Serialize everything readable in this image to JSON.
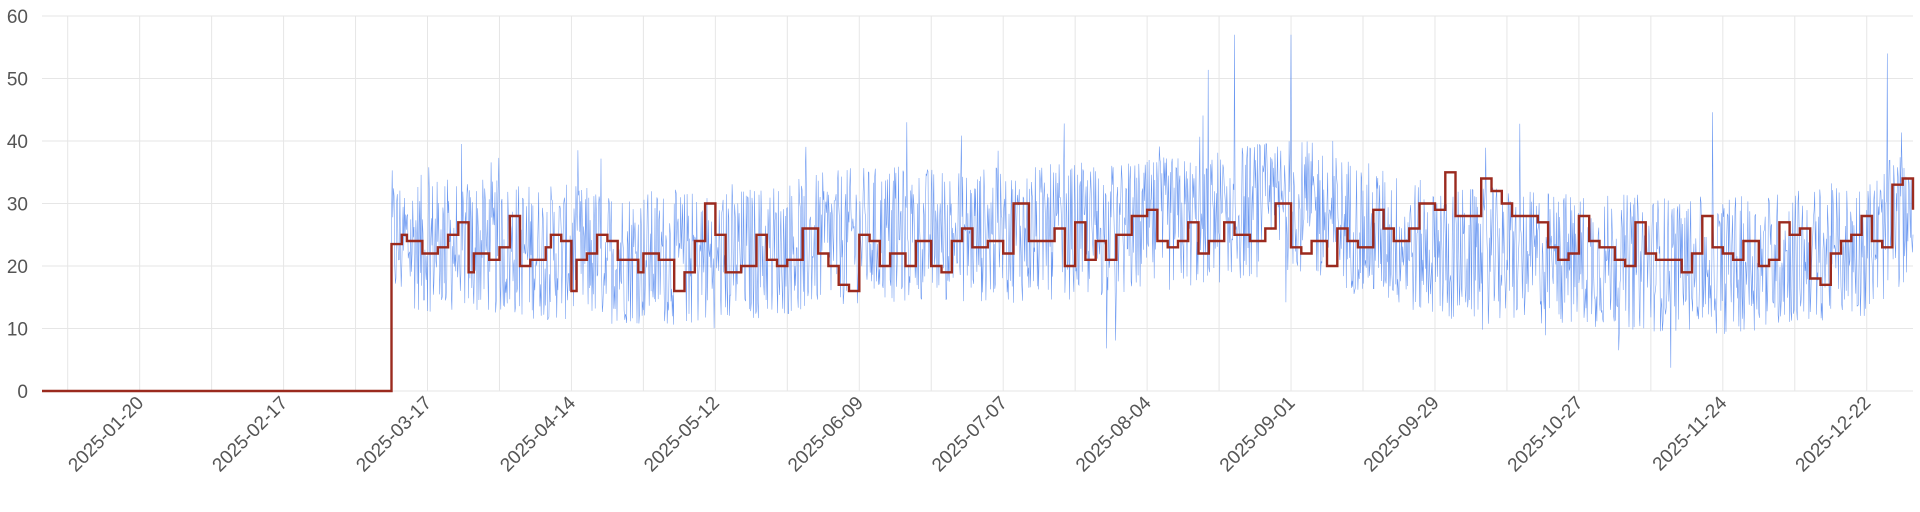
{
  "chart_data": {
    "type": "line",
    "title": "",
    "xlabel": "",
    "ylabel": "",
    "x_range": [
      "2025-01-01",
      "2025-12-31"
    ],
    "ylim": [
      0,
      60
    ],
    "y_ticks": [
      0,
      10,
      20,
      30,
      40,
      50,
      60
    ],
    "x_ticks": [
      "2025-01-20",
      "2025-02-17",
      "2025-03-17",
      "2025-04-14",
      "2025-05-12",
      "2025-06-09",
      "2025-07-07",
      "2025-08-04",
      "2025-09-01",
      "2025-09-29",
      "2025-10-27",
      "2025-11-24",
      "2025-12-22"
    ],
    "grid": true,
    "legend": "none",
    "series": [
      {
        "color": "#5b8def",
        "style": "thin line",
        "description": "high-frequency values; about 0 from 2025-01-01 to 2025-03-10, then noisy between about 0 and 57",
        "start": "2025-01-01",
        "nonzero_from": "2025-03-10",
        "approx_points": [
          [
            "2025-03-10",
            24
          ],
          [
            "2025-04-14",
            22
          ],
          [
            "2025-05-12",
            21
          ],
          [
            "2025-06-09",
            25
          ],
          [
            "2025-07-07",
            25
          ],
          [
            "2025-08-04",
            26
          ],
          [
            "2025-09-01",
            30
          ],
          [
            "2025-09-29",
            22
          ],
          [
            "2025-10-27",
            21
          ],
          [
            "2025-11-24",
            20
          ],
          [
            "2025-12-22",
            23
          ],
          [
            "2025-12-31",
            29
          ]
        ],
        "peaks": [
          [
            "2025-08-21",
            57
          ],
          [
            "2025-09-01",
            57
          ],
          [
            "2025-12-26",
            54
          ]
        ]
      },
      {
        "color": "#9b2a1e",
        "style": "step line",
        "points": [
          [
            "2025-01-01",
            0
          ],
          [
            "2025-03-10",
            0
          ],
          [
            "2025-03-10",
            23.5
          ],
          [
            "2025-03-12",
            25
          ],
          [
            "2025-03-13",
            24
          ],
          [
            "2025-03-16",
            22
          ],
          [
            "2025-03-19",
            23
          ],
          [
            "2025-03-21",
            25
          ],
          [
            "2025-03-23",
            27
          ],
          [
            "2025-03-25",
            19
          ],
          [
            "2025-03-26",
            22
          ],
          [
            "2025-03-29",
            21
          ],
          [
            "2025-03-31",
            23
          ],
          [
            "2025-04-02",
            28
          ],
          [
            "2025-04-04",
            20
          ],
          [
            "2025-04-06",
            21
          ],
          [
            "2025-04-09",
            23
          ],
          [
            "2025-04-10",
            25
          ],
          [
            "2025-04-12",
            24
          ],
          [
            "2025-04-14",
            16
          ],
          [
            "2025-04-15",
            21
          ],
          [
            "2025-04-17",
            22
          ],
          [
            "2025-04-19",
            25
          ],
          [
            "2025-04-21",
            24
          ],
          [
            "2025-04-23",
            21
          ],
          [
            "2025-04-25",
            21
          ],
          [
            "2025-04-27",
            19
          ],
          [
            "2025-04-28",
            22
          ],
          [
            "2025-05-01",
            21
          ],
          [
            "2025-05-04",
            16
          ],
          [
            "2025-05-06",
            19
          ],
          [
            "2025-05-08",
            24
          ],
          [
            "2025-05-10",
            30
          ],
          [
            "2025-05-12",
            25
          ],
          [
            "2025-05-14",
            19
          ],
          [
            "2025-05-17",
            20
          ],
          [
            "2025-05-20",
            25
          ],
          [
            "2025-05-22",
            21
          ],
          [
            "2025-05-24",
            20
          ],
          [
            "2025-05-26",
            21
          ],
          [
            "2025-05-29",
            26
          ],
          [
            "2025-06-01",
            22
          ],
          [
            "2025-06-03",
            20
          ],
          [
            "2025-06-05",
            17
          ],
          [
            "2025-06-07",
            16
          ],
          [
            "2025-06-09",
            25
          ],
          [
            "2025-06-11",
            24
          ],
          [
            "2025-06-13",
            20
          ],
          [
            "2025-06-15",
            22
          ],
          [
            "2025-06-18",
            20
          ],
          [
            "2025-06-20",
            24
          ],
          [
            "2025-06-23",
            20
          ],
          [
            "2025-06-25",
            19
          ],
          [
            "2025-06-27",
            24
          ],
          [
            "2025-06-29",
            26
          ],
          [
            "2025-07-01",
            23
          ],
          [
            "2025-07-04",
            24
          ],
          [
            "2025-07-07",
            22
          ],
          [
            "2025-07-09",
            30
          ],
          [
            "2025-07-12",
            24
          ],
          [
            "2025-07-14",
            24
          ],
          [
            "2025-07-17",
            26
          ],
          [
            "2025-07-19",
            20
          ],
          [
            "2025-07-21",
            27
          ],
          [
            "2025-07-23",
            21
          ],
          [
            "2025-07-25",
            24
          ],
          [
            "2025-07-27",
            21
          ],
          [
            "2025-07-29",
            25
          ],
          [
            "2025-08-01",
            28
          ],
          [
            "2025-08-04",
            29
          ],
          [
            "2025-08-06",
            24
          ],
          [
            "2025-08-08",
            23
          ],
          [
            "2025-08-10",
            24
          ],
          [
            "2025-08-12",
            27
          ],
          [
            "2025-08-14",
            22
          ],
          [
            "2025-08-16",
            24
          ],
          [
            "2025-08-19",
            27
          ],
          [
            "2025-08-21",
            25
          ],
          [
            "2025-08-24",
            24
          ],
          [
            "2025-08-27",
            26
          ],
          [
            "2025-08-29",
            30
          ],
          [
            "2025-09-01",
            23
          ],
          [
            "2025-09-03",
            22
          ],
          [
            "2025-09-05",
            24
          ],
          [
            "2025-09-08",
            20
          ],
          [
            "2025-09-10",
            26
          ],
          [
            "2025-09-12",
            24
          ],
          [
            "2025-09-14",
            23
          ],
          [
            "2025-09-17",
            29
          ],
          [
            "2025-09-19",
            26
          ],
          [
            "2025-09-21",
            24
          ],
          [
            "2025-09-24",
            26
          ],
          [
            "2025-09-26",
            30
          ],
          [
            "2025-09-29",
            29
          ],
          [
            "2025-10-01",
            35
          ],
          [
            "2025-10-03",
            28
          ],
          [
            "2025-10-05",
            28
          ],
          [
            "2025-10-08",
            34
          ],
          [
            "2025-10-10",
            32
          ],
          [
            "2025-10-12",
            30
          ],
          [
            "2025-10-14",
            28
          ],
          [
            "2025-10-16",
            28
          ],
          [
            "2025-10-19",
            27
          ],
          [
            "2025-10-21",
            23
          ],
          [
            "2025-10-23",
            21
          ],
          [
            "2025-10-25",
            22
          ],
          [
            "2025-10-27",
            28
          ],
          [
            "2025-10-29",
            24
          ],
          [
            "2025-10-31",
            23
          ],
          [
            "2025-11-03",
            21
          ],
          [
            "2025-11-05",
            20
          ],
          [
            "2025-11-07",
            27
          ],
          [
            "2025-11-09",
            22
          ],
          [
            "2025-11-11",
            21
          ],
          [
            "2025-11-14",
            21
          ],
          [
            "2025-11-16",
            19
          ],
          [
            "2025-11-18",
            22
          ],
          [
            "2025-11-20",
            28
          ],
          [
            "2025-11-22",
            23
          ],
          [
            "2025-11-24",
            22
          ],
          [
            "2025-11-26",
            21
          ],
          [
            "2025-11-28",
            24
          ],
          [
            "2025-12-01",
            20
          ],
          [
            "2025-12-03",
            21
          ],
          [
            "2025-12-05",
            27
          ],
          [
            "2025-12-07",
            25
          ],
          [
            "2025-12-09",
            26
          ],
          [
            "2025-12-11",
            18
          ],
          [
            "2025-12-13",
            17
          ],
          [
            "2025-12-15",
            22
          ],
          [
            "2025-12-17",
            24
          ],
          [
            "2025-12-19",
            25
          ],
          [
            "2025-12-21",
            28
          ],
          [
            "2025-12-23",
            24
          ],
          [
            "2025-12-25",
            23
          ],
          [
            "2025-12-27",
            33
          ],
          [
            "2025-12-29",
            34
          ],
          [
            "2025-12-31",
            29
          ]
        ]
      }
    ]
  },
  "colors": {
    "background": "#ffffff",
    "grid": "#e6e6e6",
    "tick_text": "#555555",
    "thin_series": "#5b8def",
    "step_series": "#9b2a1e"
  }
}
